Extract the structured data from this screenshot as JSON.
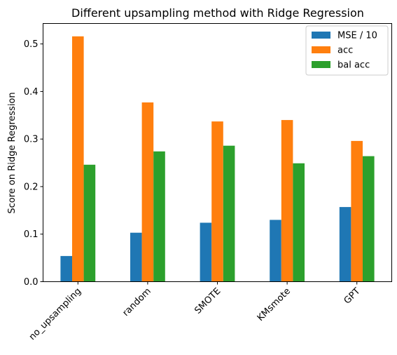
{
  "chart_data": {
    "type": "bar",
    "title": "Different upsampling method with Ridge Regression",
    "xlabel": "",
    "ylabel": "Score on Ridge Regression",
    "categories": [
      "no_upsampling",
      "random",
      "SMOTE",
      "KMsmote",
      "GPT"
    ],
    "series": [
      {
        "name": "MSE / 10",
        "color": "#1f77b4",
        "values": [
          0.054,
          0.103,
          0.124,
          0.13,
          0.157
        ]
      },
      {
        "name": "acc",
        "color": "#ff7f0e",
        "values": [
          0.516,
          0.377,
          0.337,
          0.34,
          0.296
        ]
      },
      {
        "name": "bal acc",
        "color": "#2ca02c",
        "values": [
          0.246,
          0.274,
          0.286,
          0.249,
          0.264
        ]
      }
    ],
    "ylim": [
      0,
      0.543
    ],
    "yticks": [
      0.0,
      0.1,
      0.2,
      0.3,
      0.4,
      0.5
    ],
    "ytick_labels": [
      "0.0",
      "0.1",
      "0.2",
      "0.3",
      "0.4",
      "0.5"
    ],
    "grid": false,
    "legend_position": "top-right"
  }
}
